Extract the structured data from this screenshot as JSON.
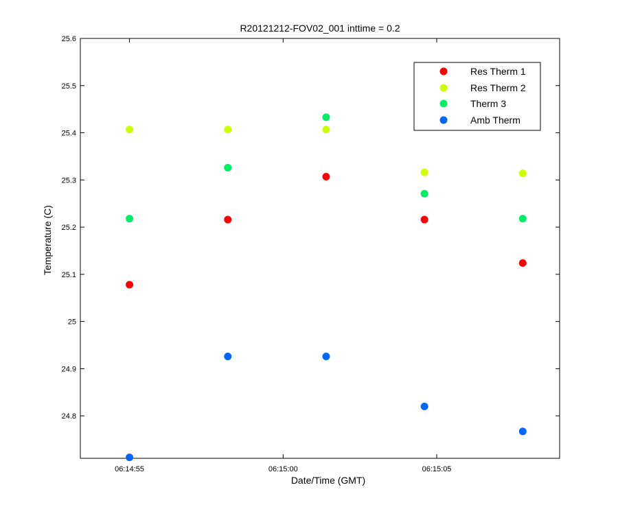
{
  "chart_data": {
    "type": "scatter",
    "title": "R20121212-FOV02_001 inttime = 0.2",
    "xlabel": "Date/Time (GMT)",
    "ylabel": "Temperature (C)",
    "xlim": [
      "06:14:53.4",
      "06:15:09.0"
    ],
    "ylim": [
      24.71,
      25.6
    ],
    "x_ticks": [
      "06:14:55",
      "06:15:00",
      "06:15:05"
    ],
    "y_ticks": [
      "24.8",
      "24.9",
      "25",
      "25.1",
      "25.2",
      "25.3",
      "25.4",
      "25.5",
      "25.6"
    ],
    "x": [
      "06:14:55.0",
      "06:14:58.2",
      "06:15:01.4",
      "06:15:04.6",
      "06:15:07.8"
    ],
    "series": [
      {
        "name": "Res Therm 1",
        "color": "#ff0000",
        "values": [
          25.078,
          25.216,
          25.307,
          25.216,
          25.124
        ]
      },
      {
        "name": "Res Therm 2",
        "color": "#ccff00",
        "values": [
          25.407,
          25.407,
          25.407,
          25.316,
          25.314
        ]
      },
      {
        "name": "Therm 3",
        "color": "#00ee66",
        "values": [
          25.218,
          25.326,
          25.433,
          25.271,
          25.218
        ]
      },
      {
        "name": "Amb Therm",
        "color": "#0066ff",
        "values": [
          24.712,
          24.926,
          24.926,
          24.82,
          24.767
        ]
      }
    ],
    "legend_position": "top-right",
    "grid": false,
    "marker": "filled circle"
  }
}
